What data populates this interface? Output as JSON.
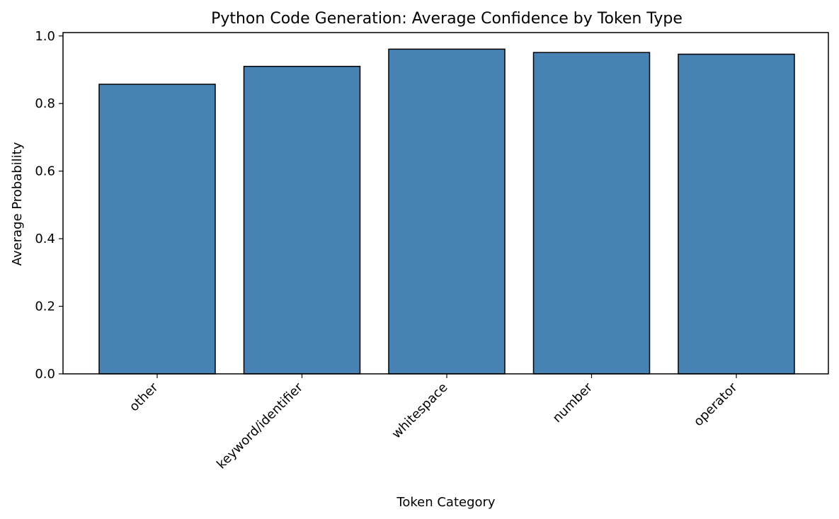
{
  "chart_data": {
    "type": "bar",
    "title": "Python Code Generation: Average Confidence by Token Type",
    "xlabel": "Token Category",
    "ylabel": "Average Probability",
    "categories": [
      "other",
      "keyword/identifier",
      "whitespace",
      "number",
      "operator"
    ],
    "values": [
      0.857,
      0.91,
      0.961,
      0.951,
      0.946
    ],
    "ylim": [
      0,
      1.01
    ],
    "yticks": [
      "0.0",
      "0.2",
      "0.4",
      "0.6",
      "0.8",
      "1.0"
    ],
    "grid": false,
    "bar_color": "#4682b4",
    "edge_color": "#000000"
  }
}
